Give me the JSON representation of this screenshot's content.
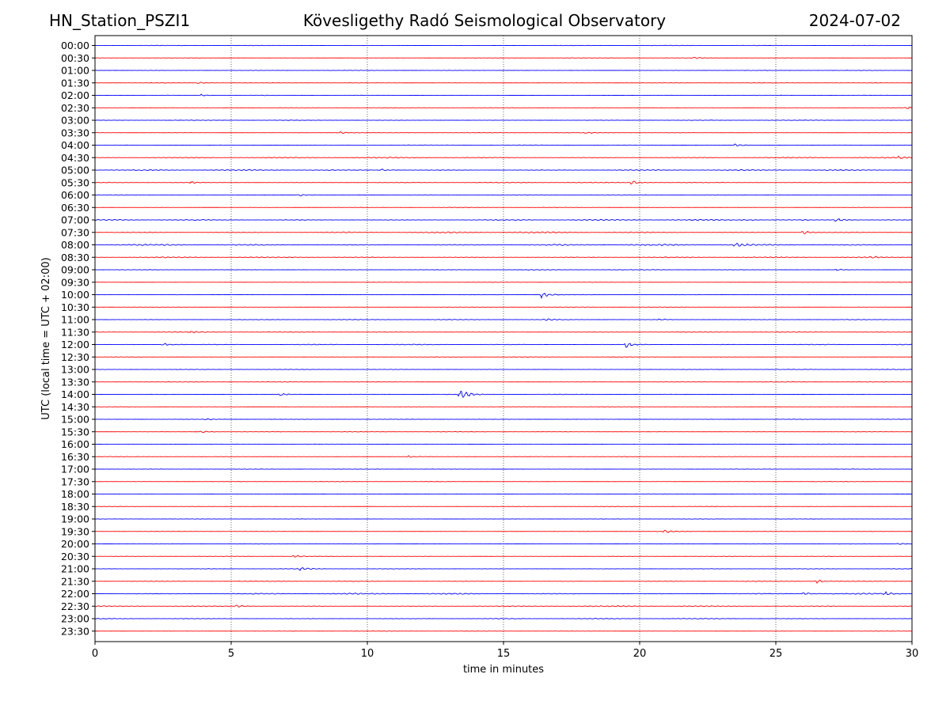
{
  "header": {
    "station": "HN_Station_PSZI1",
    "observatory": "Kövesligethy Radó Seismological Observatory",
    "date": "2024-07-02"
  },
  "chart_data": {
    "type": "line",
    "title": "Kövesligethy Radó Seismological Observatory",
    "xlabel": "time in minutes",
    "ylabel": "UTC (local time = UTC + 02:00)",
    "xlim": [
      0,
      30
    ],
    "x_ticks": [
      0,
      5,
      10,
      15,
      20,
      25,
      30
    ],
    "grid": "vertical dotted lines at 5-minute ticks",
    "colors": {
      "even_row": "#0000ff",
      "odd_row": "#ff0000",
      "grid": "#000000"
    },
    "row_labels": [
      "00:00",
      "00:30",
      "01:00",
      "01:30",
      "02:00",
      "02:30",
      "03:00",
      "03:30",
      "04:00",
      "04:30",
      "05:00",
      "05:30",
      "06:00",
      "06:30",
      "07:00",
      "07:30",
      "08:00",
      "08:30",
      "09:00",
      "09:30",
      "10:00",
      "10:30",
      "11:00",
      "11:30",
      "12:00",
      "12:30",
      "13:00",
      "13:30",
      "14:00",
      "14:30",
      "15:00",
      "15:30",
      "16:00",
      "16:30",
      "17:00",
      "17:30",
      "18:00",
      "18:30",
      "19:00",
      "19:30",
      "20:00",
      "20:30",
      "21:00",
      "21:30",
      "22:00",
      "22:30",
      "23:00",
      "23:30"
    ],
    "noise_level": [
      0.35,
      0.3,
      0.3,
      0.3,
      0.3,
      0.3,
      0.35,
      0.35,
      0.45,
      0.8,
      0.8,
      0.55,
      0.45,
      0.35,
      0.85,
      1.0,
      1.1,
      0.75,
      0.45,
      0.35,
      0.3,
      0.35,
      0.45,
      0.5,
      0.55,
      0.35,
      0.35,
      0.35,
      0.4,
      0.3,
      0.3,
      0.35,
      0.3,
      0.35,
      0.3,
      0.3,
      0.3,
      0.3,
      0.3,
      0.3,
      0.3,
      0.35,
      0.4,
      0.5,
      0.9,
      0.75,
      0.55,
      0.35
    ],
    "events": [
      {
        "row": "00:30",
        "minute": 22.0,
        "amplitude": 1.2
      },
      {
        "row": "01:30",
        "minute": 3.8,
        "amplitude": 1.2
      },
      {
        "row": "02:00",
        "minute": 3.9,
        "amplitude": 1.3
      },
      {
        "row": "02:30",
        "minute": 29.8,
        "amplitude": 1.4
      },
      {
        "row": "03:30",
        "minute": 9.0,
        "amplitude": 1.6
      },
      {
        "row": "03:30",
        "minute": 18.0,
        "amplitude": 1.2
      },
      {
        "row": "04:00",
        "minute": 23.5,
        "amplitude": 1.8
      },
      {
        "row": "04:30",
        "minute": 29.5,
        "amplitude": 1.6
      },
      {
        "row": "05:00",
        "minute": 10.5,
        "amplitude": 2.0
      },
      {
        "row": "05:30",
        "minute": 3.5,
        "amplitude": 1.5
      },
      {
        "row": "05:30",
        "minute": 19.7,
        "amplitude": 2.5
      },
      {
        "row": "06:00",
        "minute": 7.5,
        "amplitude": 1.4
      },
      {
        "row": "07:00",
        "minute": 27.2,
        "amplitude": 3.0
      },
      {
        "row": "07:00",
        "minute": 23.8,
        "amplitude": 1.5
      },
      {
        "row": "07:30",
        "minute": 26.0,
        "amplitude": 2.5
      },
      {
        "row": "08:00",
        "minute": 23.5,
        "amplitude": 3.0
      },
      {
        "row": "08:30",
        "minute": 28.5,
        "amplitude": 1.6
      },
      {
        "row": "09:00",
        "minute": 27.2,
        "amplitude": 1.5
      },
      {
        "row": "10:00",
        "minute": 16.4,
        "amplitude": 4.5
      },
      {
        "row": "11:00",
        "minute": 16.5,
        "amplitude": 1.6
      },
      {
        "row": "11:00",
        "minute": 20.7,
        "amplitude": 1.6
      },
      {
        "row": "11:30",
        "minute": 3.5,
        "amplitude": 1.8
      },
      {
        "row": "12:00",
        "minute": 2.5,
        "amplitude": 2.2
      },
      {
        "row": "12:00",
        "minute": 19.5,
        "amplitude": 4.0
      },
      {
        "row": "14:00",
        "minute": 13.4,
        "amplitude": 8.0
      },
      {
        "row": "14:00",
        "minute": 6.8,
        "amplitude": 2.5
      },
      {
        "row": "15:00",
        "minute": 4.0,
        "amplitude": 1.5
      },
      {
        "row": "15:30",
        "minute": 3.9,
        "amplitude": 2.0
      },
      {
        "row": "16:30",
        "minute": 11.5,
        "amplitude": 1.6
      },
      {
        "row": "19:30",
        "minute": 20.9,
        "amplitude": 2.3
      },
      {
        "row": "20:00",
        "minute": 29.5,
        "amplitude": 1.6
      },
      {
        "row": "20:30",
        "minute": 7.3,
        "amplitude": 1.8
      },
      {
        "row": "21:00",
        "minute": 7.5,
        "amplitude": 2.2
      },
      {
        "row": "21:30",
        "minute": 26.5,
        "amplitude": 2.5
      },
      {
        "row": "22:00",
        "minute": 29.0,
        "amplitude": 2.5
      },
      {
        "row": "22:00",
        "minute": 26.0,
        "amplitude": 1.8
      },
      {
        "row": "22:30",
        "minute": 5.2,
        "amplitude": 1.8
      }
    ]
  }
}
